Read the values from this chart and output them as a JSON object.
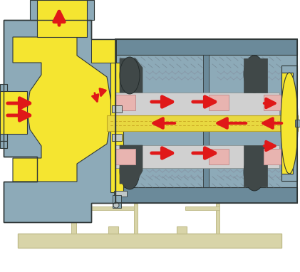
{
  "bg_color": "#ffffff",
  "gray": "#8daab8",
  "gray_dark": "#6b8a9a",
  "gray_mid": "#7a9aaa",
  "yellow": "#f5e530",
  "yellow_shaft": "#e8d840",
  "pink": "#e8b4b0",
  "silver": "#d0d0d0",
  "silver2": "#c0c8c8",
  "beige": "#d8d4a8",
  "beige_dark": "#c0bc8a",
  "dark": "#404848",
  "outline": "#303838",
  "red": "#e01818",
  "fig_width": 4.21,
  "fig_height": 3.82,
  "dpi": 100
}
